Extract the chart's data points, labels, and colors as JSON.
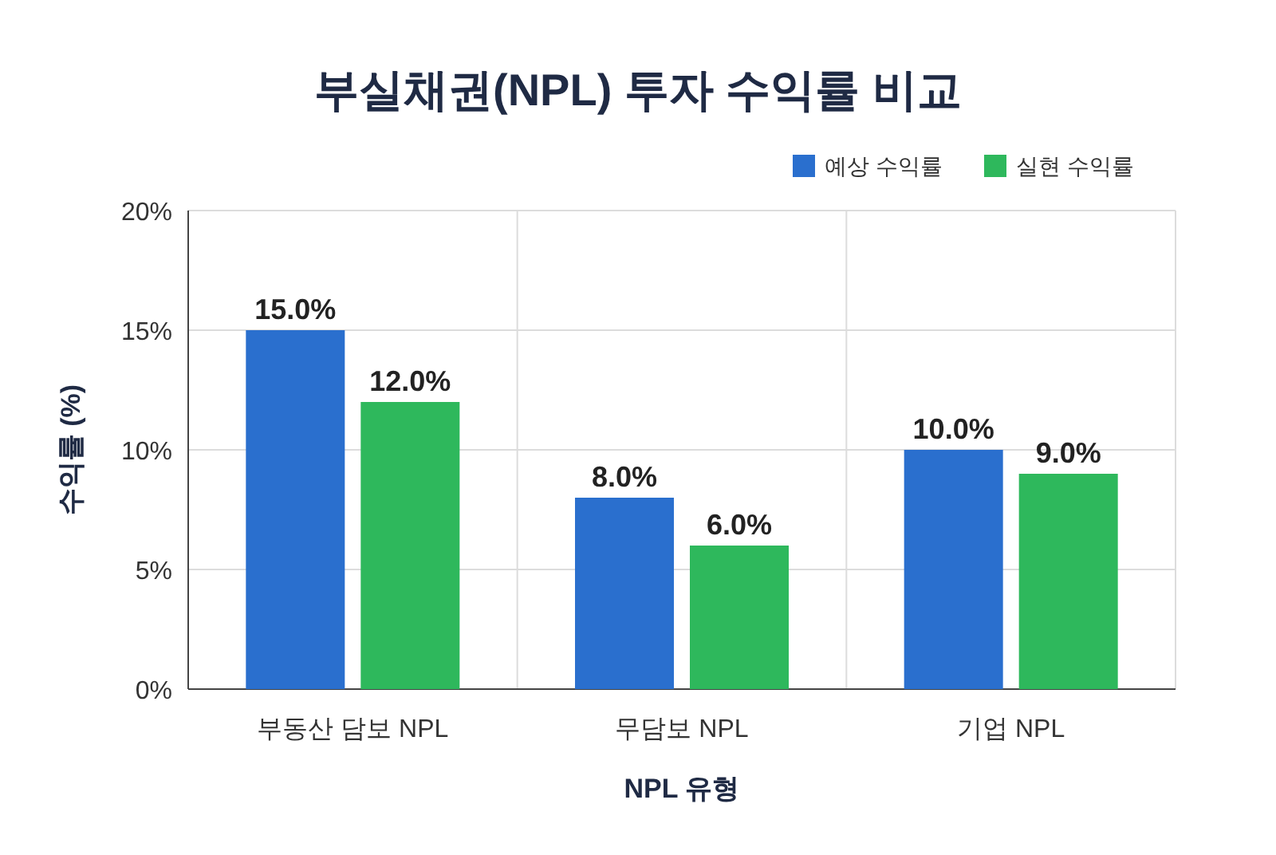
{
  "chart_data": {
    "type": "bar",
    "title": "부실채권(NPL) 투자 수익률 비교",
    "xlabel": "NPL 유형",
    "ylabel": "수익률 (%)",
    "categories": [
      "부동산 담보 NPL",
      "무담보 NPL",
      "기업 NPL"
    ],
    "series": [
      {
        "name": "예상 수익률",
        "color": "#2a6fce",
        "values": [
          15,
          8,
          10
        ],
        "value_labels": [
          "15.0%",
          "8.0%",
          "10.0%"
        ]
      },
      {
        "name": "실현 수익률",
        "color": "#2eb85c",
        "values": [
          12,
          6,
          9
        ],
        "value_labels": [
          "12.0%",
          "6.0%",
          "9.0%"
        ]
      }
    ],
    "ylim": [
      0,
      20
    ],
    "yticks": [
      {
        "value": 0,
        "label": "0%"
      },
      {
        "value": 5,
        "label": "5%"
      },
      {
        "value": 10,
        "label": "10%"
      },
      {
        "value": 15,
        "label": "15%"
      },
      {
        "value": 20,
        "label": "20%"
      }
    ],
    "grid": true,
    "legend": "top right"
  }
}
